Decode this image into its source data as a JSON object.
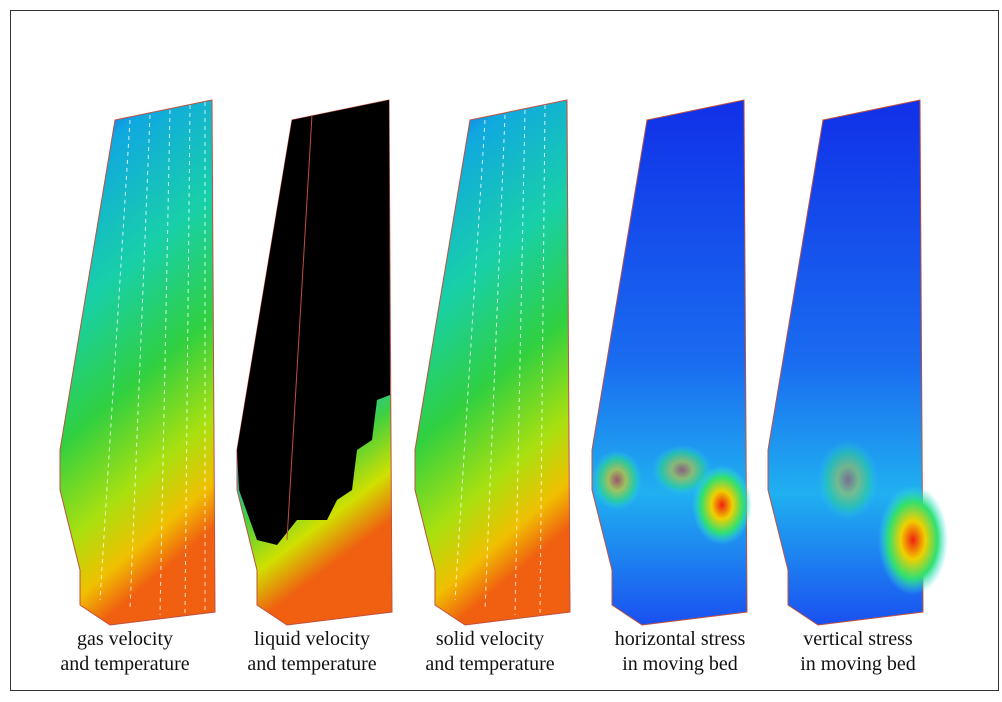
{
  "panels": [
    {
      "caption": [
        "gas velocity",
        "and temperature"
      ]
    },
    {
      "caption": [
        "liquid velocity",
        "and temperature"
      ]
    },
    {
      "caption": [
        "solid velocity",
        "and temperature"
      ]
    },
    {
      "caption": [
        "horizontal stress",
        "in moving bed"
      ]
    },
    {
      "caption": [
        "vertical stress",
        "in moving bed"
      ]
    }
  ]
}
